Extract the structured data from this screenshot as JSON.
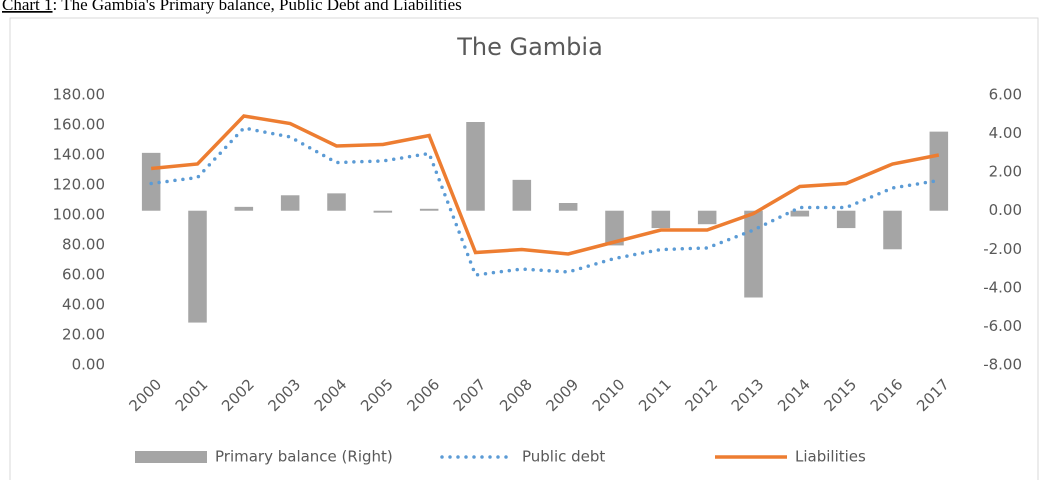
{
  "caption": {
    "label": "Chart 1",
    "text": ": The Gambia's Primary balance, Public Debt and Liabilities"
  },
  "chart_data": {
    "type": "combo",
    "title": "The Gambia",
    "categories": [
      "2000",
      "2001",
      "2002",
      "2003",
      "2004",
      "2005",
      "2006",
      "2007",
      "2008",
      "2009",
      "2010",
      "2011",
      "2012",
      "2013",
      "2014",
      "2015",
      "2016",
      "2017"
    ],
    "series": [
      {
        "name": "Primary balance (Right)",
        "type": "bar",
        "axis": "y2",
        "color": "#a5a5a5",
        "values": [
          3.0,
          -5.8,
          0.2,
          0.8,
          0.9,
          -0.1,
          0.1,
          4.6,
          1.6,
          0.4,
          -1.8,
          -0.9,
          -0.7,
          -4.5,
          -0.3,
          -0.9,
          -2.0,
          4.1
        ]
      },
      {
        "name": "Public debt",
        "type": "line",
        "style": "dotted",
        "color": "#5b9bd5",
        "values": [
          121,
          125,
          158,
          152,
          135,
          136,
          141,
          60,
          64,
          62,
          71,
          77,
          78,
          90,
          105,
          105,
          118,
          123
        ]
      },
      {
        "name": "Liabilities",
        "type": "line",
        "style": "solid",
        "color": "#ed7d31",
        "values": [
          131,
          134,
          166,
          161,
          146,
          147,
          153,
          75,
          77,
          74,
          82,
          90,
          90,
          101,
          119,
          121,
          134,
          140
        ]
      }
    ],
    "ylim": [
      0,
      180
    ],
    "yticks": [
      {
        "value": 0,
        "label": "0.00"
      },
      {
        "value": 20,
        "label": "20.00"
      },
      {
        "value": 40,
        "label": "40.00"
      },
      {
        "value": 60,
        "label": "60.00"
      },
      {
        "value": 80,
        "label": "80.00"
      },
      {
        "value": 100,
        "label": "100.00"
      },
      {
        "value": 120,
        "label": "120.00"
      },
      {
        "value": 140,
        "label": "140.00"
      },
      {
        "value": 160,
        "label": "160.00"
      },
      {
        "value": 180,
        "label": "180.00"
      }
    ],
    "y2lim": [
      -8,
      6
    ],
    "y2ticks": [
      {
        "value": -8,
        "label": "-8.00"
      },
      {
        "value": -6,
        "label": "-6.00"
      },
      {
        "value": -4,
        "label": "-4.00"
      },
      {
        "value": -2,
        "label": "-2.00"
      },
      {
        "value": 0,
        "label": "0.00"
      },
      {
        "value": 2,
        "label": "2.00"
      },
      {
        "value": 4,
        "label": "4.00"
      },
      {
        "value": 6,
        "label": "6.00"
      }
    ],
    "grid": false,
    "legend": "bottom"
  }
}
